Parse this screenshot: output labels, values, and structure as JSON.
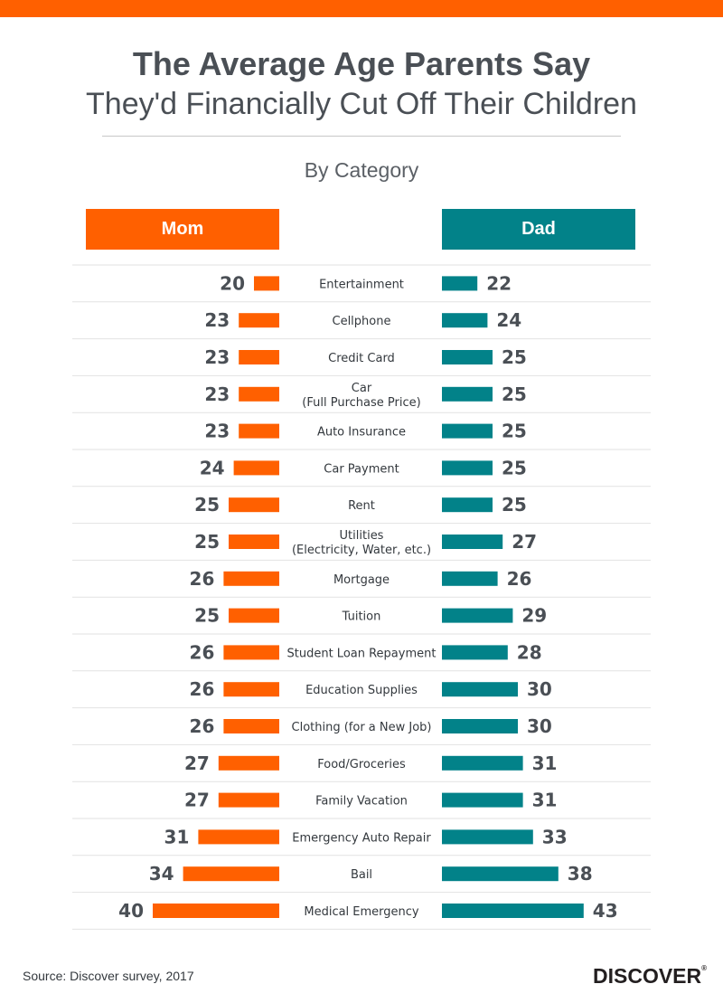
{
  "header": {
    "title_line1": "The Average Age Parents Say",
    "title_line2": "They'd Financially Cut Off Their Children",
    "subtitle": "By Category"
  },
  "columns": {
    "mom": "Mom",
    "dad": "Dad"
  },
  "colors": {
    "accent": "#ff6000",
    "mom": "#ff6000",
    "dad": "#028289"
  },
  "chart_data": {
    "type": "bar",
    "orientation": "horizontal-diverging",
    "categories": [
      [
        "Entertainment"
      ],
      [
        "Cellphone"
      ],
      [
        "Credit Card"
      ],
      [
        "Car",
        "(Full Purchase Price)"
      ],
      [
        "Auto Insurance"
      ],
      [
        "Car Payment"
      ],
      [
        "Rent"
      ],
      [
        "Utilities",
        "(Electricity, Water, etc.)"
      ],
      [
        "Mortgage"
      ],
      [
        "Tuition"
      ],
      [
        "Student Loan Repayment"
      ],
      [
        "Education Supplies"
      ],
      [
        "Clothing (for a New Job)"
      ],
      [
        "Food/Groceries"
      ],
      [
        "Family Vacation"
      ],
      [
        "Emergency Auto Repair"
      ],
      [
        "Bail"
      ],
      [
        "Medical Emergency"
      ]
    ],
    "series": [
      {
        "name": "Mom",
        "values": [
          20,
          23,
          23,
          23,
          23,
          24,
          25,
          25,
          26,
          25,
          26,
          26,
          26,
          27,
          27,
          31,
          34,
          40
        ]
      },
      {
        "name": "Dad",
        "values": [
          22,
          24,
          25,
          25,
          25,
          25,
          25,
          27,
          26,
          29,
          28,
          30,
          30,
          31,
          31,
          33,
          38,
          43
        ]
      }
    ],
    "grid": true
  },
  "footer": {
    "source": "Source: Discover survey, 2017",
    "logo_text": "DISCOVER",
    "logo_mark": "®"
  }
}
